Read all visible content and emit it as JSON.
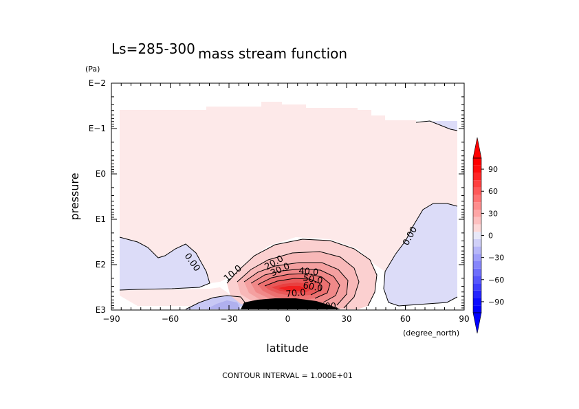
{
  "chart_data": {
    "type": "contour",
    "title": "mass stream function",
    "subtitle": "Ls=285-300",
    "xlabel": "latitude",
    "x_unit": "(degree_north)",
    "ylabel": "pressure",
    "y_unit": "(Pa)",
    "xlim": [
      -90,
      90
    ],
    "x_ticks": [
      -90,
      -60,
      -30,
      0,
      30,
      60,
      90
    ],
    "x_tick_labels": [
      "−90",
      "−60",
      "−30",
      "0",
      "30",
      "60",
      "90"
    ],
    "y_scale": "log",
    "y_tick_labels": [
      "E−2",
      "E−1",
      "E0",
      "E1",
      "E2",
      "E3"
    ],
    "y_ticks": [
      0.01,
      0.1,
      1,
      10,
      100,
      1000
    ],
    "contour_interval_text": "CONTOUR INTERVAL = 1.000E+01",
    "contour_labels": [
      "0.00",
      "0.00",
      "0.00",
      "10.0",
      "20.0",
      "30.0",
      "40.0",
      "50.0",
      "60.0",
      "70.0"
    ],
    "colorbar": {
      "tick_labels": [
        "90",
        "60",
        "30",
        "0",
        "−30",
        "−60",
        "−90"
      ],
      "tick_values": [
        90,
        60,
        30,
        0,
        -30,
        -60,
        -90
      ],
      "min": -105,
      "max": 105,
      "step": 10,
      "extend": "both"
    },
    "colors": {
      "positive_max": "#ff0000",
      "positive_min": "#fde6e6",
      "negative_min": "#dcdcf8",
      "negative_max": "#0000ff"
    }
  }
}
